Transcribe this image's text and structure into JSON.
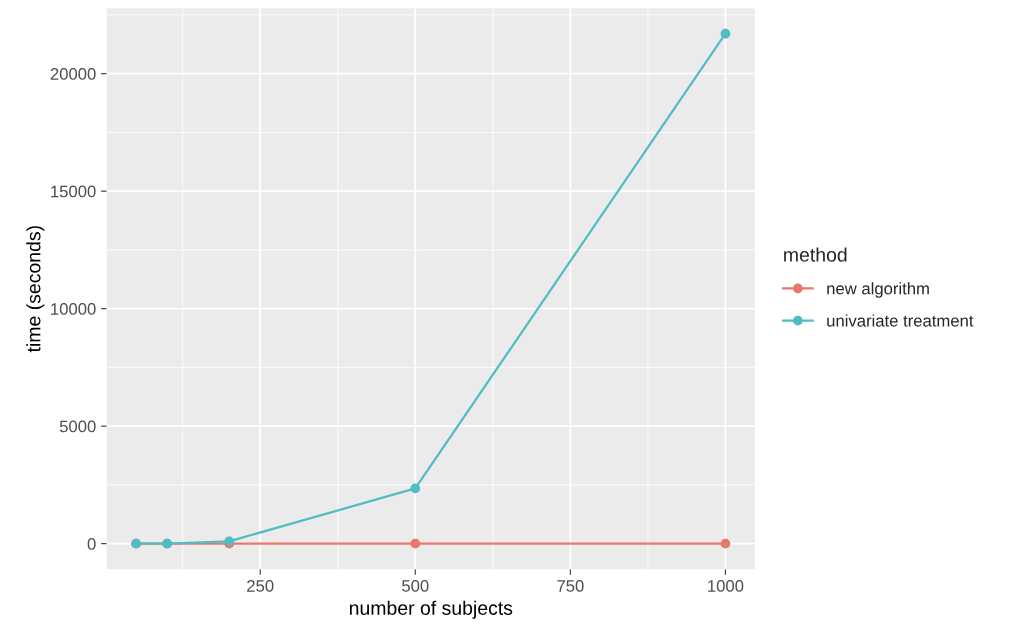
{
  "chart_data": {
    "type": "line",
    "xlabel": "number of subjects",
    "ylabel": "time (seconds)",
    "legend_title": "method",
    "x": [
      50,
      100,
      200,
      500,
      1000
    ],
    "series": [
      {
        "name": "new algorithm",
        "color": "#e8776c",
        "values": [
          0,
          0,
          0,
          0,
          0
        ]
      },
      {
        "name": "univariate treatment",
        "color": "#52bcc4",
        "values": [
          0,
          0,
          100,
          2350,
          21700
        ]
      }
    ],
    "xlim": [
      2.5,
      1047.5
    ],
    "ylim": [
      -1085,
      22785
    ],
    "xticks": [
      250,
      500,
      750,
      1000
    ],
    "yticks": [
      0,
      5000,
      10000,
      15000,
      20000
    ],
    "grid": true,
    "legend": "right",
    "marker": "circle",
    "line_style": "solid"
  }
}
